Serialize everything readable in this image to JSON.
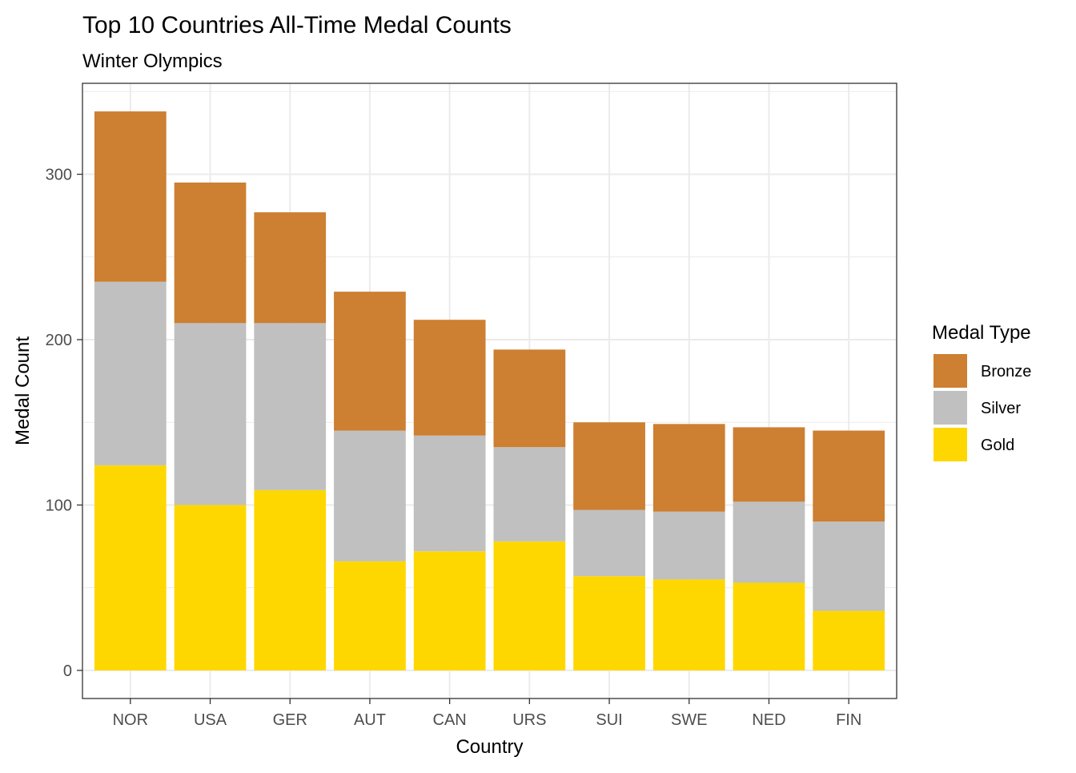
{
  "chart_data": {
    "type": "bar",
    "stacked": true,
    "title": "Top 10 Countries All-Time Medal Counts",
    "subtitle": "Winter Olympics",
    "xlabel": "Country",
    "ylabel": "Medal Count",
    "categories": [
      "NOR",
      "USA",
      "GER",
      "AUT",
      "CAN",
      "URS",
      "SUI",
      "SWE",
      "NED",
      "FIN"
    ],
    "series": [
      {
        "name": "Gold",
        "color": "#FFD700",
        "values": [
          124,
          100,
          109,
          66,
          72,
          78,
          57,
          55,
          53,
          36
        ]
      },
      {
        "name": "Silver",
        "color": "#C0C0C0",
        "values": [
          111,
          110,
          101,
          79,
          70,
          57,
          40,
          41,
          49,
          54
        ]
      },
      {
        "name": "Bronze",
        "color": "#CD7F32",
        "values": [
          103,
          85,
          67,
          84,
          70,
          59,
          53,
          53,
          45,
          55
        ]
      }
    ],
    "ylim": [
      -17,
      355
    ],
    "yticks": [
      0,
      100,
      200,
      300
    ],
    "grid": true,
    "legend": {
      "title": "Medal Type",
      "placement": "right",
      "order": [
        "Bronze",
        "Silver",
        "Gold"
      ]
    }
  }
}
